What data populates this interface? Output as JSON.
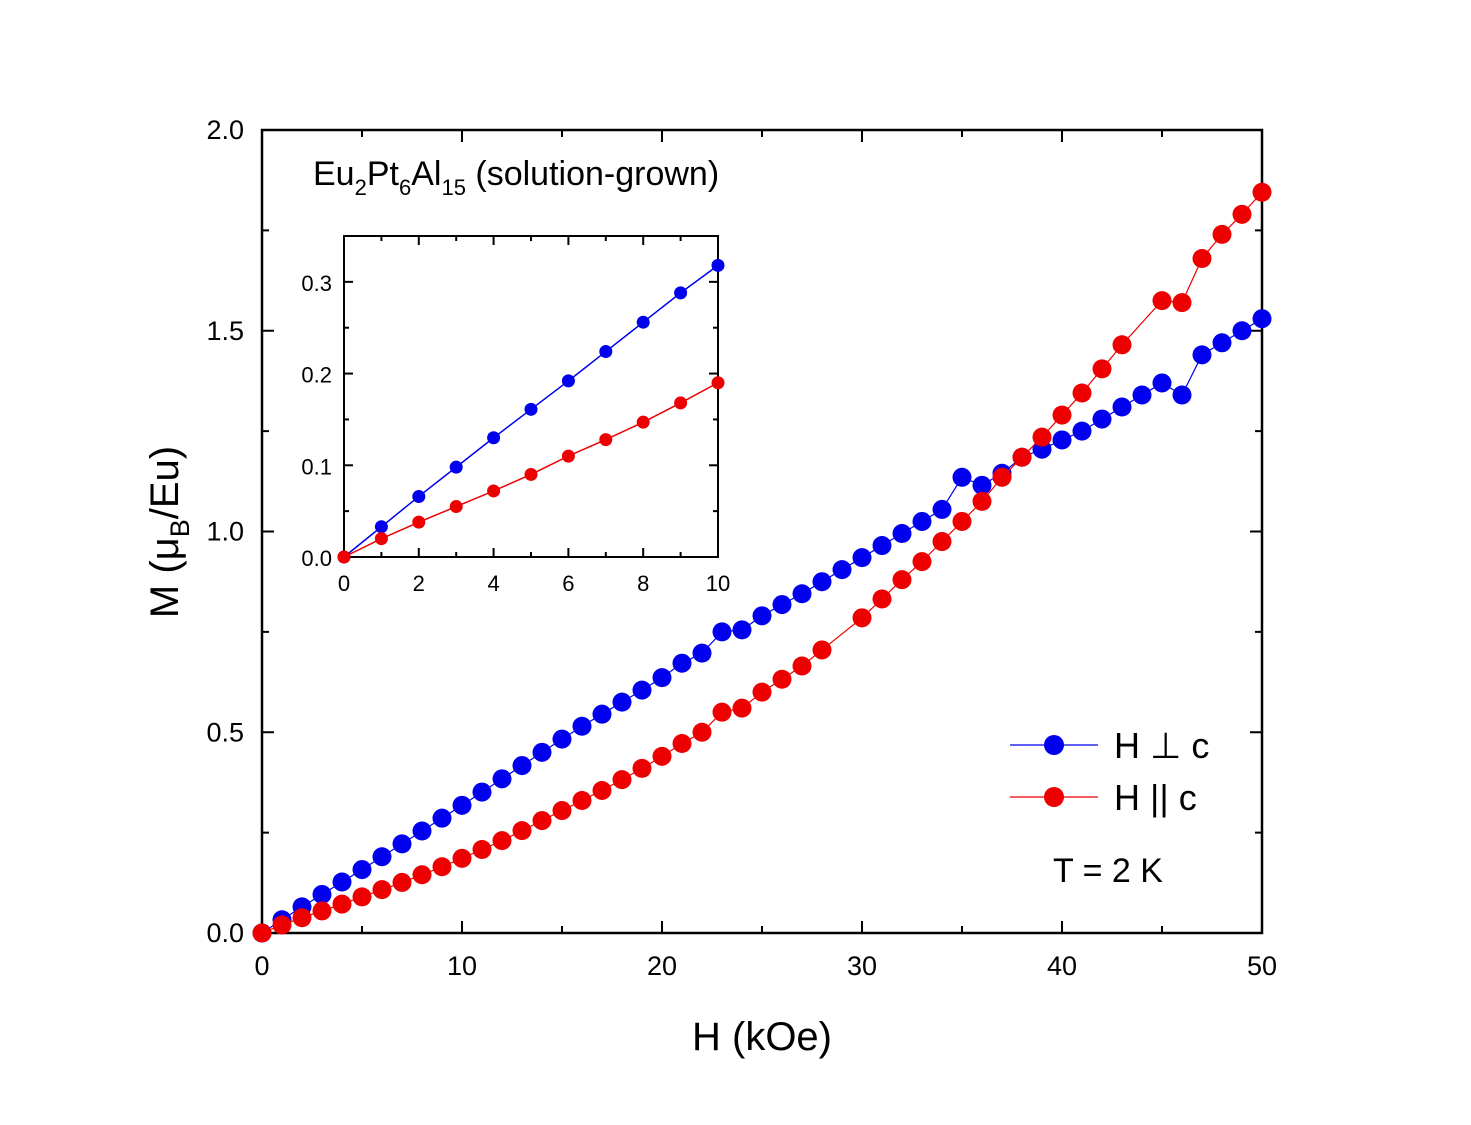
{
  "chart_data": {
    "type": "scatter",
    "title": "Eu2Pt6Al15 (solution-grown)",
    "title_parts": {
      "base1": "Eu",
      "sub1": "2",
      "base2": "Pt",
      "sub2": "6",
      "base3": "Al",
      "sub3": "15",
      "rest": " (solution-grown)"
    },
    "xlabel": "H (kOe)",
    "ylabel_parts": {
      "pre": "M (μ",
      "sub": "B",
      "post": "/Eu)"
    },
    "xlim": [
      0,
      50
    ],
    "ylim": [
      0,
      2.0
    ],
    "x_ticks": [
      "0",
      "10",
      "20",
      "30",
      "40",
      "50"
    ],
    "y_ticks": [
      "0.0",
      "0.5",
      "1.0",
      "1.5",
      "2.0"
    ],
    "annotation": "T = 2 K",
    "legend_position": "bottom-right",
    "series": [
      {
        "name": "H ⊥ c",
        "color": "#0000ee",
        "x": [
          0,
          1,
          2,
          3,
          4,
          5,
          6,
          7,
          8,
          9,
          10,
          11,
          12,
          13,
          14,
          15,
          16,
          17,
          18,
          19,
          20,
          21,
          22,
          23,
          24,
          25,
          26,
          27,
          28,
          29,
          30,
          31,
          32,
          33,
          34,
          35,
          36,
          37,
          38,
          39,
          40,
          41,
          42,
          43,
          44,
          45,
          46,
          47,
          48,
          49,
          50
        ],
        "y": [
          0.0,
          0.033,
          0.065,
          0.096,
          0.127,
          0.158,
          0.19,
          0.222,
          0.254,
          0.286,
          0.318,
          0.351,
          0.384,
          0.417,
          0.45,
          0.483,
          0.515,
          0.545,
          0.575,
          0.605,
          0.636,
          0.672,
          0.697,
          0.75,
          0.755,
          0.79,
          0.818,
          0.845,
          0.875,
          0.905,
          0.935,
          0.965,
          0.995,
          1.025,
          1.055,
          1.135,
          1.115,
          1.145,
          1.185,
          1.205,
          1.228,
          1.25,
          1.28,
          1.31,
          1.34,
          1.37,
          1.34,
          1.44,
          1.47,
          1.5,
          1.53
        ]
      },
      {
        "name": "H || c",
        "color": "#ee0000",
        "x": [
          0,
          1,
          2,
          3,
          4,
          5,
          6,
          7,
          8,
          9,
          10,
          11,
          12,
          13,
          14,
          15,
          16,
          17,
          18,
          19,
          20,
          21,
          22,
          23,
          24,
          25,
          26,
          27,
          28,
          29,
          30,
          31,
          32,
          33,
          34,
          35,
          36,
          37,
          38,
          39,
          40,
          41,
          42,
          43,
          44,
          45,
          46,
          47,
          48,
          49,
          50
        ],
        "y": [
          0.0,
          0.02,
          0.038,
          0.055,
          0.072,
          0.09,
          0.108,
          0.126,
          0.145,
          0.165,
          0.186,
          0.208,
          0.23,
          0.255,
          0.28,
          0.305,
          0.33,
          0.355,
          0.382,
          0.41,
          0.44,
          0.472,
          0.5,
          0.55,
          0.56,
          0.6,
          0.632,
          0.665,
          0.705,
          null,
          0.785,
          0.832,
          0.88,
          0.925,
          0.975,
          1.025,
          1.075,
          1.135,
          1.185,
          1.235,
          1.29,
          1.345,
          1.405,
          1.465,
          null,
          1.575,
          1.57,
          1.68,
          1.74,
          1.79,
          1.845
        ]
      }
    ],
    "inset": {
      "xlim": [
        0,
        10
      ],
      "ylim": [
        0,
        0.35
      ],
      "x_ticks": [
        "0",
        "2",
        "4",
        "6",
        "8",
        "10"
      ],
      "y_ticks": [
        "0.0",
        "0.1",
        "0.2",
        "0.3"
      ],
      "series": [
        {
          "name": "H ⊥ c",
          "color": "#0000ee",
          "x": [
            0,
            1,
            2,
            3,
            4,
            5,
            6,
            7,
            8,
            9,
            10
          ],
          "y": [
            0.0,
            0.033,
            0.066,
            0.098,
            0.13,
            0.161,
            0.192,
            0.224,
            0.256,
            0.288,
            0.318
          ]
        },
        {
          "name": "H || c",
          "color": "#ee0000",
          "x": [
            0,
            1,
            2,
            3,
            4,
            5,
            6,
            7,
            8,
            9,
            10
          ],
          "y": [
            0.0,
            0.02,
            0.038,
            0.055,
            0.072,
            0.09,
            0.11,
            0.128,
            0.147,
            0.168,
            0.19
          ]
        }
      ]
    }
  }
}
